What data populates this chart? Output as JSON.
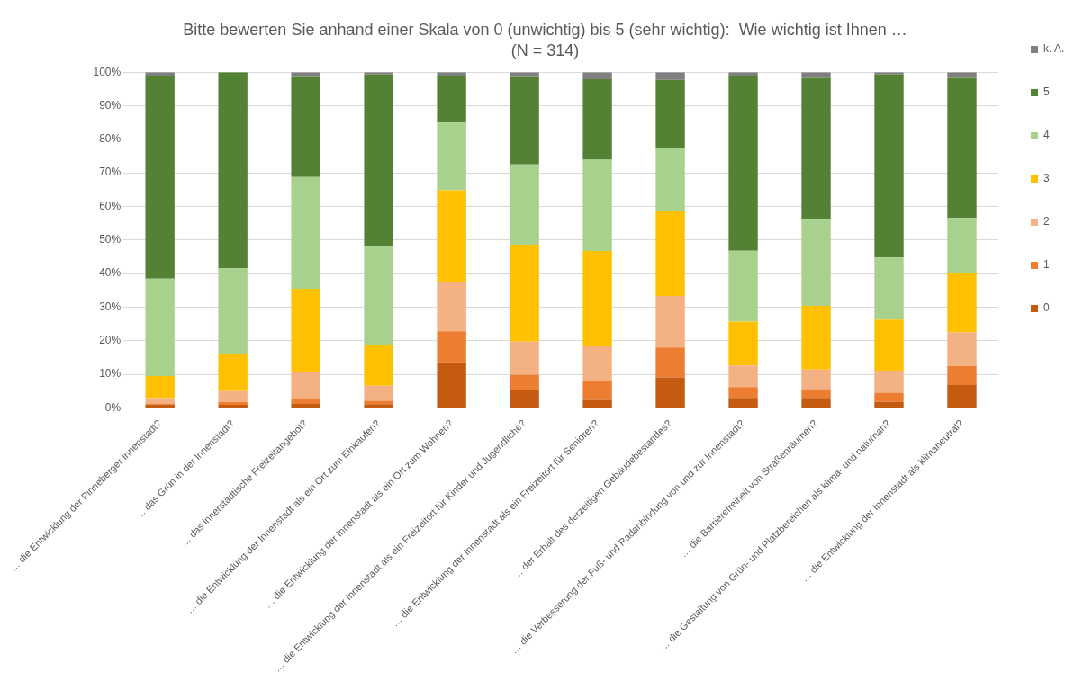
{
  "chart_data": {
    "type": "bar",
    "stacked": true,
    "title": "Bitte bewerten Sie anhand einer Skala von 0 (unwichtig) bis 5 (sehr wichtig):  Wie wichtig ist Ihnen …",
    "subtitle": "(N = 314)",
    "categories": [
      "… die Entwicklung der Pinneberger Innenstadt?",
      "… das Grün in der Innenstadt?",
      "… das innerstädtische Freizeitangebot?",
      "… die Entwicklung der Innenstadt als ein Ort zum Einkaufen?",
      "… die Entwicklung der Innenstadt als ein Ort zum Wohnen?",
      "… die Entwicklung der Innenstadt als ein Freizeitort für Kinder und Jugendliche?",
      "… die Entwicklung der Innenstadt als ein Freizeitort für Senioren?",
      "… der Erhalt des derzeitigen Gebäudebestandes?",
      "… die Verbesserung der Fuß- und Radanbindung von und zur Innenstadt?",
      "… die Barrierefreiheit von Straßenräumen?",
      "… die Gestaltung von Grün- und Platzbereichen als klima- und naturnah?",
      "… die Entwicklung der Innenstadt als klimaneutral?"
    ],
    "series": [
      {
        "name": "0",
        "color": "#c55a11",
        "values": [
          1.0,
          0.9,
          1.2,
          1.1,
          13.6,
          5.2,
          2.4,
          9.1,
          3.0,
          3.0,
          1.8,
          6.8
        ]
      },
      {
        "name": "1",
        "color": "#ed7d31",
        "values": [
          0.3,
          0.9,
          1.7,
          1.0,
          9.2,
          4.7,
          5.8,
          8.9,
          3.2,
          2.6,
          2.7,
          5.7
        ]
      },
      {
        "name": "2",
        "color": "#f4b183",
        "values": [
          1.6,
          3.2,
          7.8,
          4.5,
          14.7,
          9.8,
          10.1,
          15.3,
          6.4,
          5.8,
          6.6,
          10.0
        ]
      },
      {
        "name": "3",
        "color": "#ffc000",
        "values": [
          6.6,
          11.1,
          24.8,
          12.0,
          27.3,
          28.9,
          28.4,
          25.3,
          13.1,
          19.0,
          15.2,
          17.5
        ]
      },
      {
        "name": "4",
        "color": "#a9d18e",
        "values": [
          29.0,
          25.5,
          33.3,
          29.4,
          20.2,
          23.9,
          27.2,
          18.8,
          21.1,
          25.9,
          18.5,
          16.6
        ]
      },
      {
        "name": "5",
        "color": "#548235",
        "values": [
          60.4,
          58.4,
          29.8,
          51.3,
          14.0,
          26.1,
          24.0,
          20.3,
          51.9,
          42.0,
          54.5,
          41.7
        ]
      },
      {
        "name": "k. A.",
        "color": "#7f7f7f",
        "values": [
          1.1,
          0,
          1.4,
          0.7,
          1.0,
          1.4,
          2.1,
          2.3,
          1.3,
          1.7,
          0.7,
          1.7
        ]
      }
    ],
    "ylim": [
      0,
      100
    ],
    "yticks": [
      {
        "value": 0,
        "label": "0%"
      },
      {
        "value": 10,
        "label": "10%"
      },
      {
        "value": 20,
        "label": "20%"
      },
      {
        "value": 30,
        "label": "30%"
      },
      {
        "value": 40,
        "label": "40%"
      },
      {
        "value": 50,
        "label": "50%"
      },
      {
        "value": 60,
        "label": "60%"
      },
      {
        "value": 70,
        "label": "70%"
      },
      {
        "value": 80,
        "label": "80%"
      },
      {
        "value": 90,
        "label": "90%"
      },
      {
        "value": 100,
        "label": "100%"
      }
    ],
    "grid": "y",
    "legend": "right"
  }
}
